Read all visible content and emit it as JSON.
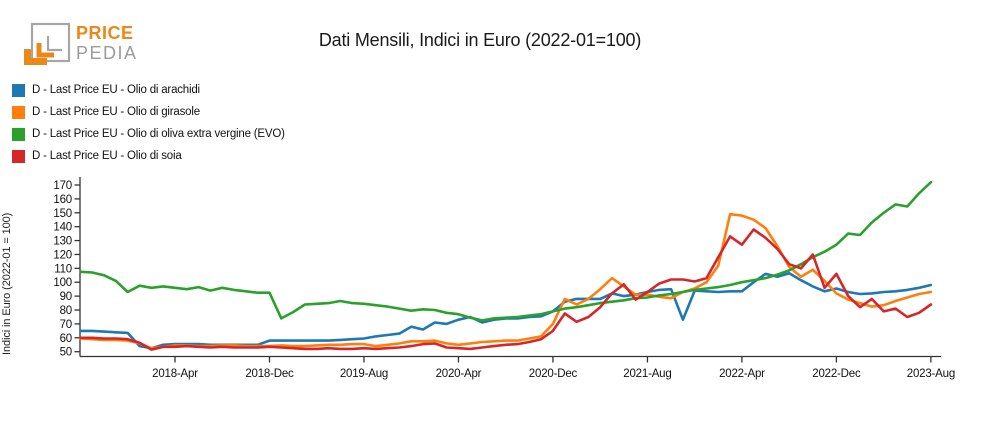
{
  "logo": {
    "brand_top": "PRICE",
    "brand_bottom": "PEDIA",
    "orange": "#e8891a",
    "gray": "#9b9b9b"
  },
  "header": {
    "title": "Dati Mensili, Indici in Euro (2022-01=100)"
  },
  "chart_data": {
    "type": "line",
    "title": "Dati Mensili, Indici in Euro (2022-01=100)",
    "xlabel": "",
    "ylabel": "Indici in Euro (2022-01 = 100)",
    "x_unit": "month",
    "x_start": "2017-08",
    "x_end": "2023-08",
    "n_points": 73,
    "x_tick_indices": [
      8,
      16,
      24,
      32,
      40,
      48,
      56,
      64,
      72
    ],
    "x_tick_labels": [
      "2018-Apr",
      "2018-Dec",
      "2019-Aug",
      "2020-Apr",
      "2020-Dec",
      "2021-Aug",
      "2022-Apr",
      "2022-Dec",
      "2023-Aug"
    ],
    "y_ticks": [
      50,
      60,
      70,
      80,
      90,
      100,
      110,
      120,
      130,
      140,
      150,
      160,
      170
    ],
    "ylim": [
      46.5,
      176
    ],
    "grid": false,
    "legend_position": "top-left",
    "axis_color": "#333333",
    "series": [
      {
        "name": "D - Last Price EU - Olio di arachidi",
        "color": "#1f77b4",
        "values": [
          65,
          65,
          64.5,
          64,
          63.5,
          54,
          52.5,
          55,
          55.5,
          55.5,
          55.5,
          55,
          55,
          55,
          55,
          55,
          58,
          58,
          58,
          58,
          58,
          58,
          58.5,
          59,
          59.5,
          61,
          62,
          63,
          68,
          66,
          71,
          70,
          73,
          75,
          71,
          73,
          74,
          74,
          75,
          75.5,
          79,
          86,
          88,
          88,
          88,
          92,
          90,
          91,
          93,
          94.5,
          95,
          73,
          94,
          93.5,
          93,
          93.5,
          93.5,
          100,
          106,
          104,
          106.5,
          101.5,
          97,
          93.5,
          95.5,
          93,
          91.5,
          92,
          93,
          93.5,
          94.5,
          96,
          98
        ]
      },
      {
        "name": "D - Last Price EU - Olio di girasole",
        "color": "#ff7f0e",
        "values": [
          59.5,
          59,
          58.5,
          58.5,
          58,
          56,
          52.5,
          53.5,
          54.5,
          54.5,
          54,
          54,
          54.5,
          54.5,
          54,
          54,
          54,
          54.5,
          54,
          54,
          54.5,
          55,
          55,
          55.5,
          55.5,
          54,
          55,
          56,
          57.5,
          57.5,
          58,
          56,
          55,
          56,
          57,
          57.5,
          58,
          58,
          59.5,
          61,
          70,
          88,
          84,
          88,
          95,
          103,
          97,
          91,
          91,
          89.5,
          88.5,
          93,
          95.5,
          100,
          112,
          149,
          148,
          145,
          139,
          126,
          111,
          104,
          109,
          101,
          92,
          87.5,
          85,
          82.5,
          83.5,
          86.5,
          89,
          91.5,
          93
        ]
      },
      {
        "name": "D - Last Price EU - Olio di oliva extra vergine (EVO)",
        "color": "#2ca02c",
        "values": [
          107.5,
          107,
          105,
          101,
          93,
          97.5,
          96,
          97,
          96,
          95,
          96.5,
          94,
          96,
          94.5,
          93.5,
          92.5,
          92.5,
          74,
          78.5,
          84,
          84.5,
          85,
          86.5,
          85,
          84.5,
          83.5,
          82.5,
          81,
          79.5,
          80.5,
          80,
          78,
          77,
          74.5,
          72.5,
          74,
          74.5,
          75,
          76,
          77,
          79,
          81,
          82,
          83.5,
          85,
          86,
          87,
          88.5,
          89,
          90.5,
          91.5,
          93,
          94.5,
          95.5,
          96.5,
          98,
          100,
          101.5,
          103,
          105.5,
          108.5,
          113,
          118,
          122,
          127,
          135,
          134,
          143,
          150,
          156,
          154.5,
          164,
          172
        ]
      },
      {
        "name": "D - Last Price EU - Olio di soia",
        "color": "#d62728",
        "values": [
          60,
          60,
          59.5,
          59.5,
          59,
          56.5,
          51.5,
          53.5,
          53.5,
          54,
          53.5,
          53,
          53.5,
          53,
          53,
          53,
          53.5,
          53,
          52.5,
          52,
          52,
          52.5,
          52,
          52,
          52.5,
          52,
          52.5,
          53,
          54,
          55.5,
          56,
          53,
          52.5,
          52,
          53,
          54,
          55,
          55.5,
          57,
          59,
          65,
          77.5,
          71.5,
          75,
          82,
          92,
          98.5,
          87.5,
          93,
          99,
          102,
          102,
          100.5,
          103,
          118,
          133,
          127,
          138,
          132,
          124,
          113,
          110,
          120,
          96,
          106,
          90,
          82,
          88,
          79,
          81,
          75,
          78,
          84
        ]
      }
    ]
  }
}
